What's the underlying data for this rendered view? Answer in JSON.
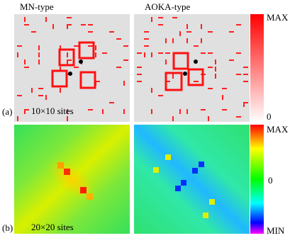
{
  "panels": {
    "columns": [
      "MN-type",
      "AOKA-type"
    ],
    "rows": [
      {
        "label": "(a)",
        "sites": "10×10 sites"
      },
      {
        "label": "(b)",
        "sites": "20×20 sites"
      }
    ]
  },
  "colorbars": [
    {
      "labels": [
        "MAX",
        "0"
      ]
    },
    {
      "labels": [
        "MAX",
        "0",
        "MIN"
      ]
    }
  ]
}
